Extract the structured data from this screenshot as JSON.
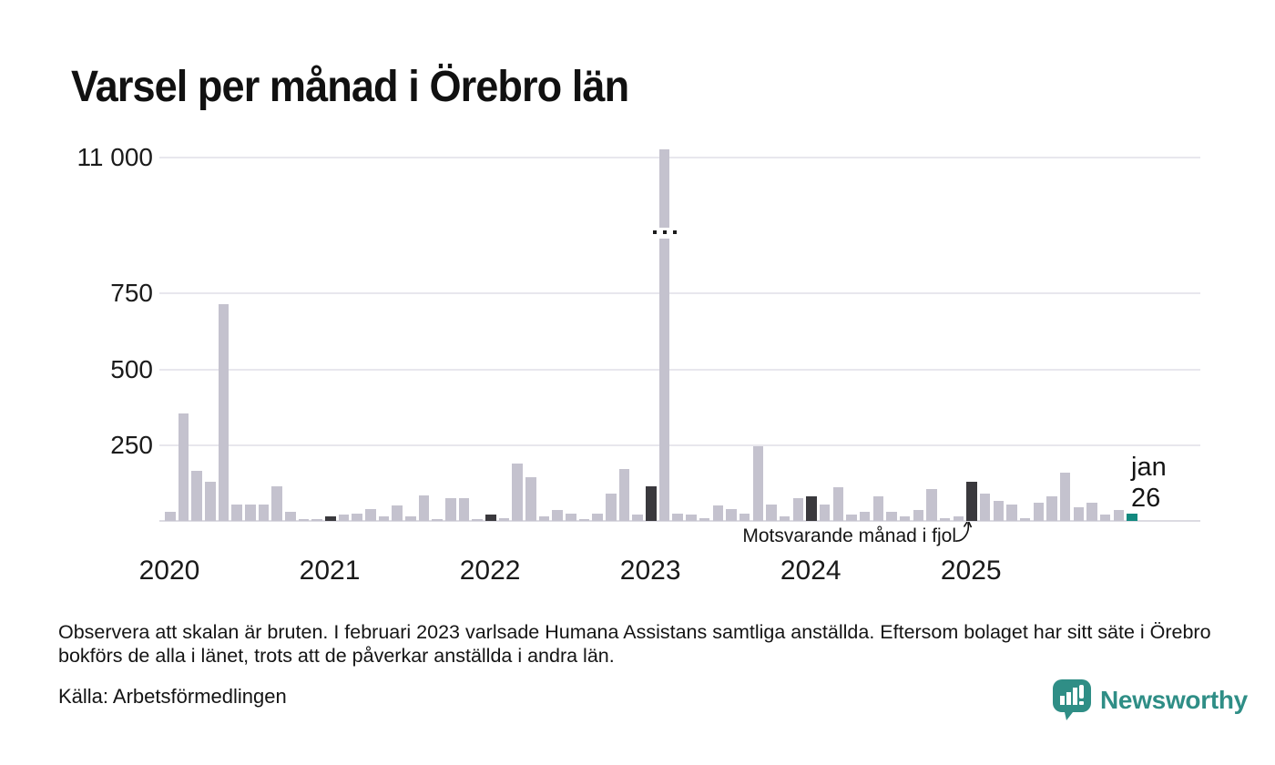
{
  "title": "Varsel per månad i Örebro län",
  "chart_data": {
    "type": "bar",
    "title": "Varsel per månad i Örebro län",
    "xlabel": "",
    "ylabel": "",
    "x_range": "jan 2020 – jan 2026",
    "y_axis": {
      "broken": true,
      "break_between": [
        800,
        10800
      ],
      "ticks": [
        {
          "label": "11 000",
          "value": 11000
        },
        {
          "label": "750",
          "value": 750
        },
        {
          "label": "500",
          "value": 500
        },
        {
          "label": "250",
          "value": 250
        }
      ]
    },
    "x_year_labels": [
      "2020",
      "2021",
      "2022",
      "2023",
      "2024",
      "2025"
    ],
    "legend": {
      "normal": "Varsel per månad",
      "lastjan": "Motsvarande månad i fjol",
      "current": "jan 26"
    },
    "colors": {
      "normal": "#c4c2ce",
      "lastjan": "#3a393d",
      "current": "#12897f"
    },
    "columns": [
      "month",
      "value",
      "kind"
    ],
    "rows": [
      [
        "jan 2020",
        30,
        "normal"
      ],
      [
        "feb 2020",
        355,
        "normal"
      ],
      [
        "mar 2020",
        165,
        "normal"
      ],
      [
        "apr 2020",
        130,
        "normal"
      ],
      [
        "maj 2020",
        715,
        "normal"
      ],
      [
        "jun 2020",
        55,
        "normal"
      ],
      [
        "jul 2020",
        55,
        "normal"
      ],
      [
        "aug 2020",
        55,
        "normal"
      ],
      [
        "sep 2020",
        115,
        "normal"
      ],
      [
        "okt 2020",
        30,
        "normal"
      ],
      [
        "nov 2020",
        5,
        "normal"
      ],
      [
        "dec 2020",
        5,
        "normal"
      ],
      [
        "jan 2021",
        15,
        "lastjan"
      ],
      [
        "feb 2021",
        20,
        "normal"
      ],
      [
        "mar 2021",
        25,
        "normal"
      ],
      [
        "apr 2021",
        40,
        "normal"
      ],
      [
        "maj 2021",
        15,
        "normal"
      ],
      [
        "jun 2021",
        50,
        "normal"
      ],
      [
        "jul 2021",
        15,
        "normal"
      ],
      [
        "aug 2021",
        85,
        "normal"
      ],
      [
        "sep 2021",
        5,
        "normal"
      ],
      [
        "okt 2021",
        75,
        "normal"
      ],
      [
        "nov 2021",
        75,
        "normal"
      ],
      [
        "dec 2021",
        5,
        "normal"
      ],
      [
        "jan 2022",
        20,
        "lastjan"
      ],
      [
        "feb 2022",
        10,
        "normal"
      ],
      [
        "mar 2022",
        190,
        "normal"
      ],
      [
        "apr 2022",
        145,
        "normal"
      ],
      [
        "maj 2022",
        15,
        "normal"
      ],
      [
        "jun 2022",
        35,
        "normal"
      ],
      [
        "jul 2022",
        25,
        "normal"
      ],
      [
        "aug 2022",
        3,
        "normal"
      ],
      [
        "sep 2022",
        25,
        "normal"
      ],
      [
        "okt 2022",
        90,
        "normal"
      ],
      [
        "nov 2022",
        170,
        "normal"
      ],
      [
        "dec 2022",
        20,
        "normal"
      ],
      [
        "jan 2023",
        115,
        "lastjan"
      ],
      [
        "feb 2023",
        11100,
        "normal"
      ],
      [
        "mar 2023",
        25,
        "normal"
      ],
      [
        "apr 2023",
        20,
        "normal"
      ],
      [
        "maj 2023",
        10,
        "normal"
      ],
      [
        "jun 2023",
        50,
        "normal"
      ],
      [
        "jul 2023",
        40,
        "normal"
      ],
      [
        "aug 2023",
        25,
        "normal"
      ],
      [
        "sep 2023",
        245,
        "normal"
      ],
      [
        "okt 2023",
        55,
        "normal"
      ],
      [
        "nov 2023",
        15,
        "normal"
      ],
      [
        "dec 2023",
        75,
        "normal"
      ],
      [
        "jan 2024",
        80,
        "lastjan"
      ],
      [
        "feb 2024",
        55,
        "normal"
      ],
      [
        "mar 2024",
        110,
        "normal"
      ],
      [
        "apr 2024",
        20,
        "normal"
      ],
      [
        "maj 2024",
        30,
        "normal"
      ],
      [
        "jun 2024",
        80,
        "normal"
      ],
      [
        "jul 2024",
        30,
        "normal"
      ],
      [
        "aug 2024",
        15,
        "normal"
      ],
      [
        "sep 2024",
        35,
        "normal"
      ],
      [
        "okt 2024",
        105,
        "normal"
      ],
      [
        "nov 2024",
        10,
        "normal"
      ],
      [
        "dec 2024",
        15,
        "normal"
      ],
      [
        "jan 2025",
        130,
        "lastjan"
      ],
      [
        "feb 2025",
        90,
        "normal"
      ],
      [
        "mar 2025",
        65,
        "normal"
      ],
      [
        "apr 2025",
        55,
        "normal"
      ],
      [
        "maj 2025",
        10,
        "normal"
      ],
      [
        "jun 2025",
        60,
        "normal"
      ],
      [
        "jul 2025",
        80,
        "normal"
      ],
      [
        "aug 2025",
        160,
        "normal"
      ],
      [
        "sep 2025",
        45,
        "normal"
      ],
      [
        "okt 2025",
        60,
        "normal"
      ],
      [
        "nov 2025",
        20,
        "normal"
      ],
      [
        "dec 2025",
        35,
        "normal"
      ],
      [
        "jan 2026",
        25,
        "current"
      ]
    ],
    "annotation": {
      "text": "Motsvarande månad i fjol",
      "points_to": "jan 2025"
    },
    "current_label": {
      "line1": "jan",
      "line2": "26"
    }
  },
  "footnote": "Observera att skalan är bruten. I februari 2023 varlsade Humana Assistans samtliga anställda. Eftersom bolaget har sitt säte i Örebro bokförs de alla i länet, trots att de påverkar anställda i andra län.",
  "source": "Källa: Arbetsförmedlingen",
  "branding": {
    "name": "Newsworthy",
    "color": "#2f8e86"
  }
}
